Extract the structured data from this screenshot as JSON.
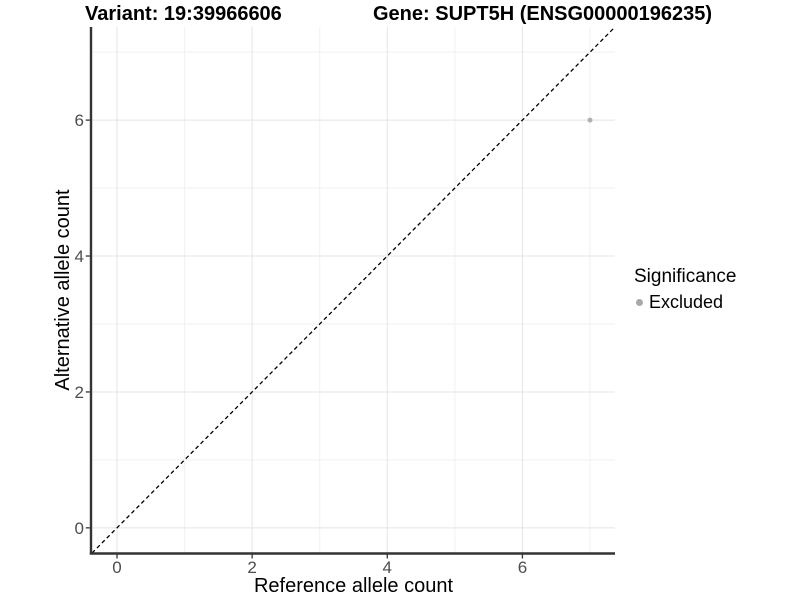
{
  "title": {
    "variant_label": "Variant: 19:39966606",
    "gene_label": "Gene: SUPT5H (ENSG00000196235)"
  },
  "chart_data": {
    "type": "scatter",
    "xlabel": "Reference allele count",
    "ylabel": "Alternative allele count",
    "xlim": [
      -0.37,
      7.37
    ],
    "ylim": [
      -0.37,
      7.37
    ],
    "x_major_ticks": [
      0,
      2,
      4,
      6
    ],
    "y_major_ticks": [
      0,
      2,
      4,
      6
    ],
    "x_minor_gridlines": [
      1,
      3,
      5,
      7
    ],
    "y_minor_gridlines": [
      1,
      3,
      5,
      7
    ],
    "grid": {
      "on": true,
      "major_color": "#e4e4e4",
      "minor_color": "#f1f1f1"
    },
    "axis": {
      "line_color": "#333333",
      "tick_color": "#333333",
      "tick_label_color": "#4d4d4d"
    },
    "identity_line": {
      "slope": 1,
      "intercept": 0,
      "style": "dashed",
      "color": "#000000"
    },
    "series": [
      {
        "name": "Excluded",
        "color": "#b0b0b0",
        "point_radius": 2.5,
        "points": [
          {
            "x": 7,
            "y": 6
          }
        ]
      }
    ],
    "legend": {
      "title": "Significance",
      "position": "right",
      "entries": [
        {
          "label": "Excluded",
          "color": "#a8a8a8"
        }
      ]
    }
  }
}
